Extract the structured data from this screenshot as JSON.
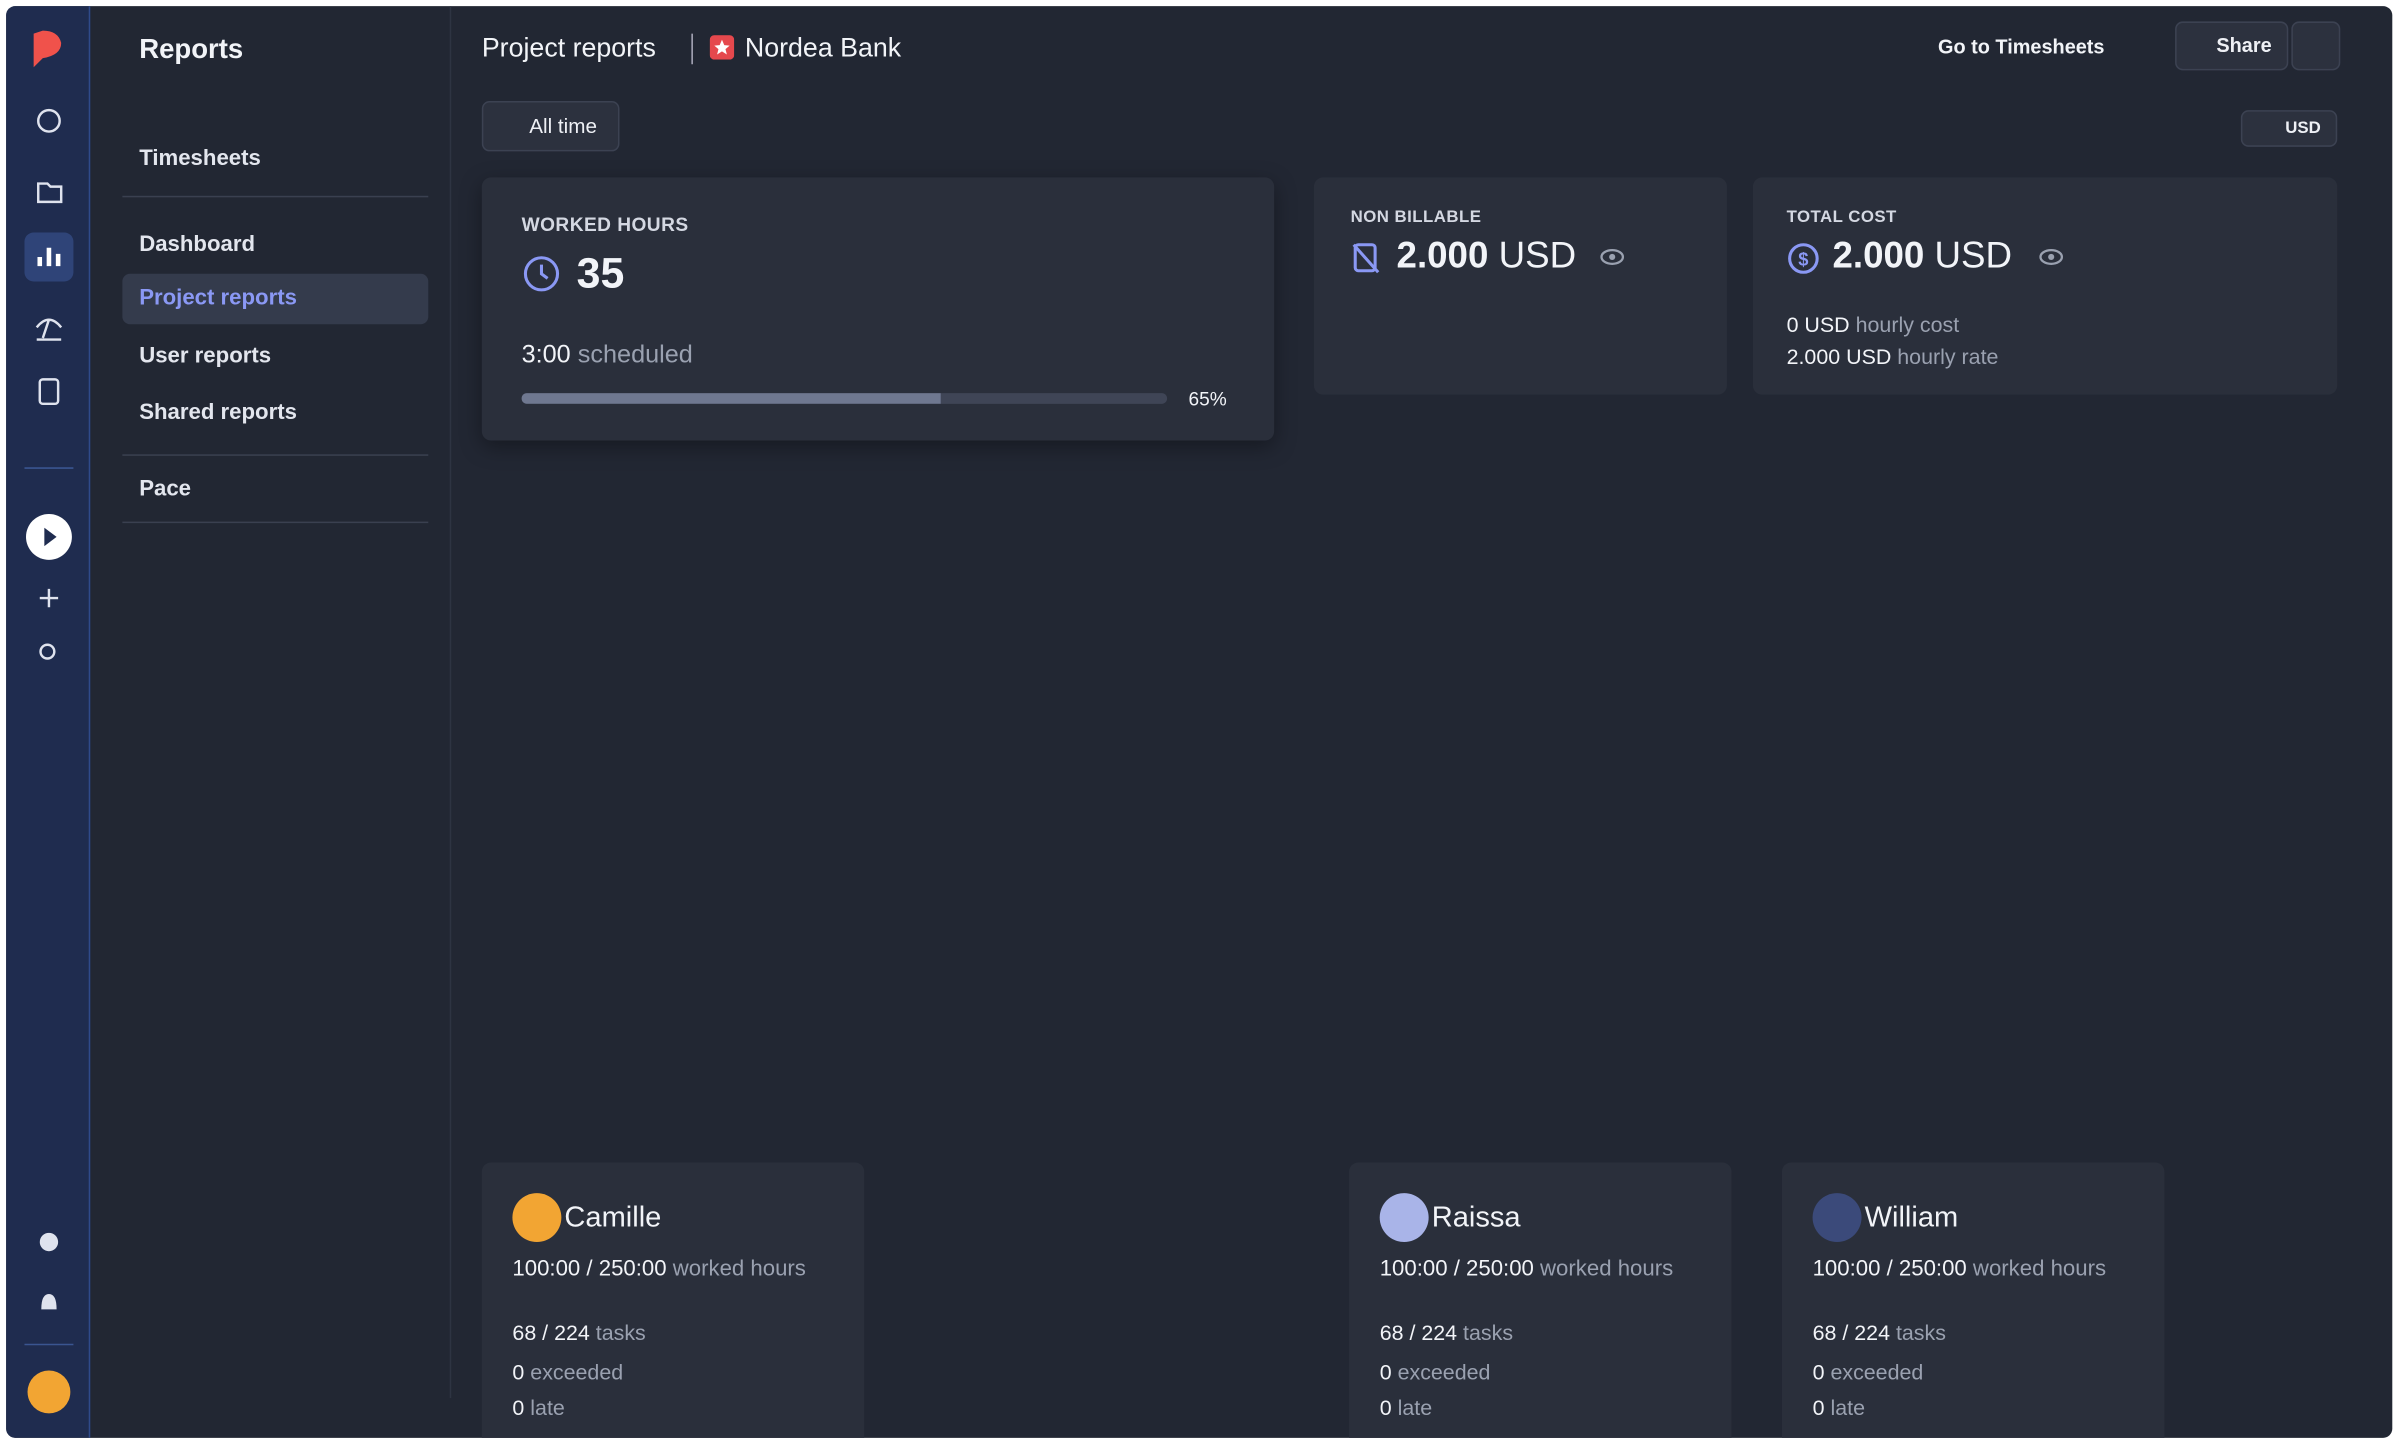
{
  "sidebar": {
    "title": "Reports",
    "items": [
      "Timesheets",
      "Dashboard",
      "Project reports",
      "User reports",
      "Shared reports",
      "Pace"
    ],
    "active": 2
  },
  "header": {
    "section": "Project reports",
    "project": "Nordea Bank",
    "link": "Go to Timesheets",
    "share": "Share"
  },
  "filters": {
    "period": "All time",
    "currency": "USD"
  },
  "worked_hours": {
    "label": "WORKED HOURS",
    "value": "35",
    "scheduled": "3:00",
    "scheduled_label": "scheduled",
    "progress": {
      "value": 65,
      "label": "65%"
    }
  },
  "non_billable": {
    "label": "NON BILLABLE",
    "amount": "2.000",
    "currency": "USD"
  },
  "total_cost": {
    "label": "TOTAL COST",
    "amount": "2.000",
    "currency": "USD",
    "lines": [
      {
        "value": "0 USD",
        "label": "hourly cost"
      },
      {
        "value": "2.000 USD",
        "label": "hourly rate"
      }
    ]
  },
  "people": [
    {
      "name": "Camille",
      "hours": "100:00 / 250:00",
      "hours_label": "worked hours",
      "tasks": "68 / 224",
      "tasks_label": "tasks",
      "exceeded": "0",
      "exceeded_label": "exceeded",
      "late": "0",
      "late_label": "late"
    },
    {
      "name": "Raissa",
      "hours": "100:00 / 250:00",
      "hours_label": "worked hours",
      "tasks": "68 / 224",
      "tasks_label": "tasks",
      "exceeded": "0",
      "exceeded_label": "exceeded",
      "late": "0",
      "late_label": "late"
    },
    {
      "name": "William",
      "hours": "100:00 / 250:00",
      "hours_label": "worked hours",
      "tasks": "68 / 224",
      "tasks_label": "tasks",
      "exceeded": "0",
      "exceeded_label": "exceeded",
      "late": "0",
      "late_label": "late"
    }
  ]
}
